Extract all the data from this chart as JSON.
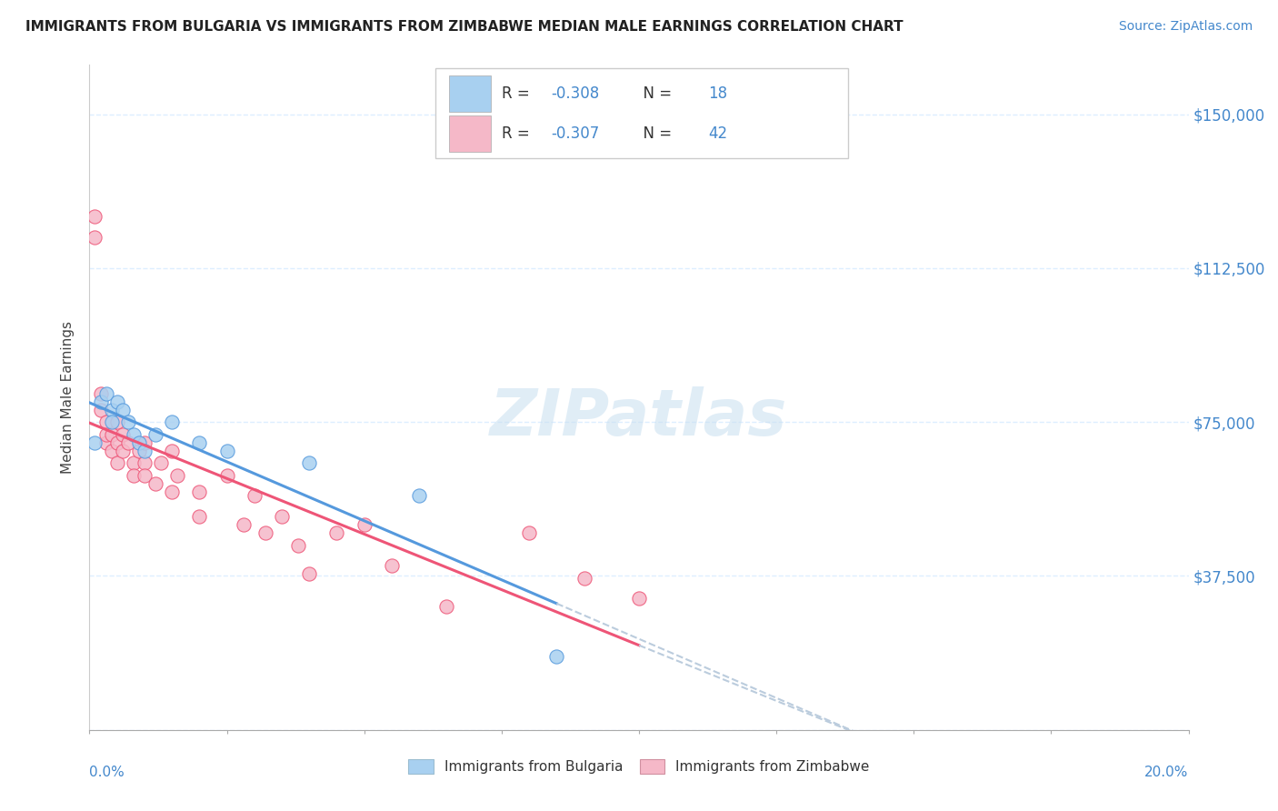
{
  "title": "IMMIGRANTS FROM BULGARIA VS IMMIGRANTS FROM ZIMBABWE MEDIAN MALE EARNINGS CORRELATION CHART",
  "source": "Source: ZipAtlas.com",
  "ylabel": "Median Male Earnings",
  "yticks": [
    0,
    37500,
    75000,
    112500,
    150000
  ],
  "ytick_labels": [
    "",
    "$37,500",
    "$75,000",
    "$112,500",
    "$150,000"
  ],
  "xlim": [
    0.0,
    0.2
  ],
  "ylim": [
    0,
    162000
  ],
  "watermark": "ZIPatlas",
  "bulgaria_color": "#a8d0f0",
  "zimbabwe_color": "#f5b8c8",
  "trendline_bulgaria_color": "#5599dd",
  "trendline_zimbabwe_color": "#ee5577",
  "trendline_extended_color": "#bbccdd",
  "background_color": "#ffffff",
  "grid_color": "#ddeeff",
  "title_color": "#222222",
  "source_color": "#4488cc",
  "axis_label_color": "#4488cc",
  "legend_text_color": "#333333",
  "legend_value_color": "#4488cc",
  "bulgaria_x": [
    0.001,
    0.002,
    0.003,
    0.004,
    0.004,
    0.005,
    0.006,
    0.007,
    0.008,
    0.009,
    0.01,
    0.012,
    0.015,
    0.02,
    0.025,
    0.04,
    0.06,
    0.085
  ],
  "bulgaria_y": [
    70000,
    80000,
    82000,
    78000,
    75000,
    80000,
    78000,
    75000,
    72000,
    70000,
    68000,
    72000,
    75000,
    70000,
    68000,
    65000,
    57000,
    18000
  ],
  "zimbabwe_x": [
    0.001,
    0.001,
    0.002,
    0.002,
    0.003,
    0.003,
    0.003,
    0.004,
    0.004,
    0.005,
    0.005,
    0.005,
    0.006,
    0.006,
    0.007,
    0.008,
    0.008,
    0.009,
    0.01,
    0.01,
    0.01,
    0.012,
    0.013,
    0.015,
    0.015,
    0.016,
    0.02,
    0.02,
    0.025,
    0.028,
    0.03,
    0.032,
    0.035,
    0.038,
    0.04,
    0.045,
    0.05,
    0.055,
    0.065,
    0.08,
    0.09,
    0.1
  ],
  "zimbabwe_y": [
    125000,
    120000,
    82000,
    78000,
    75000,
    70000,
    72000,
    72000,
    68000,
    75000,
    70000,
    65000,
    72000,
    68000,
    70000,
    65000,
    62000,
    68000,
    65000,
    70000,
    62000,
    60000,
    65000,
    68000,
    58000,
    62000,
    58000,
    52000,
    62000,
    50000,
    57000,
    48000,
    52000,
    45000,
    38000,
    48000,
    50000,
    40000,
    30000,
    48000,
    37000,
    32000
  ],
  "legend_r_bulgaria": "-0.308",
  "legend_n_bulgaria": "18",
  "legend_r_zimbabwe": "-0.307",
  "legend_n_zimbabwe": "42"
}
